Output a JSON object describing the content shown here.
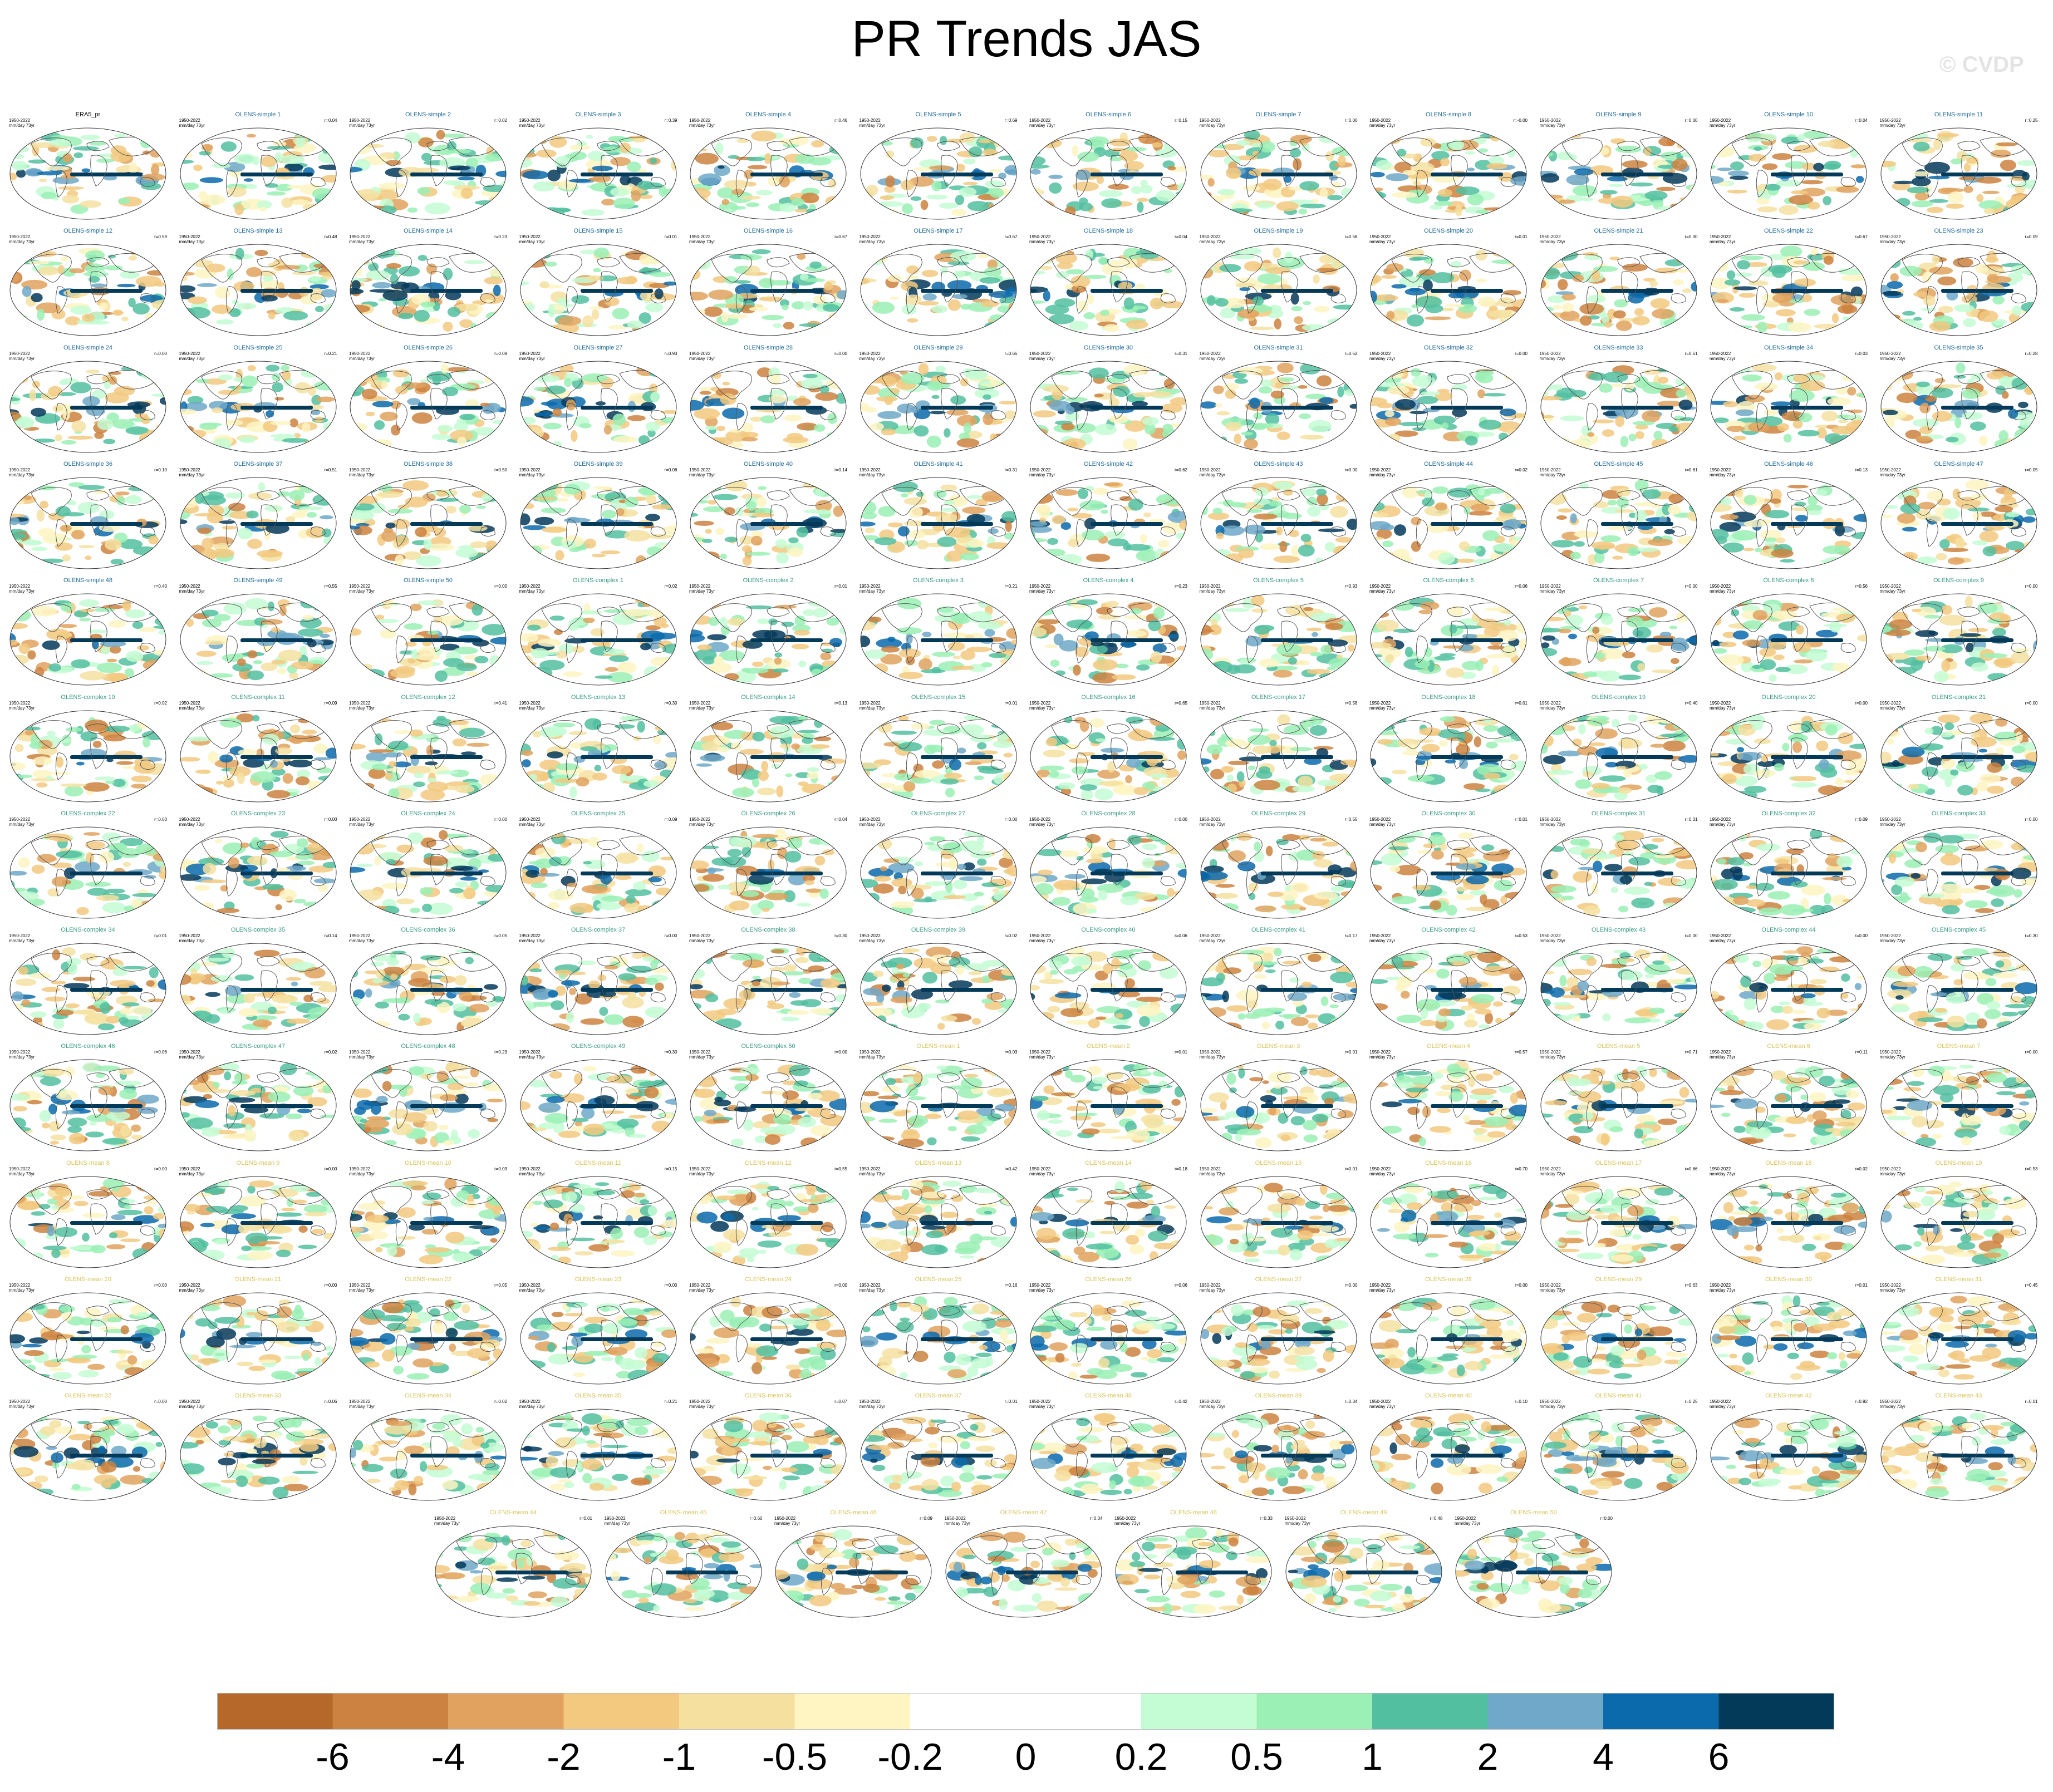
{
  "title": "PR Trends JAS",
  "watermark": "© CVDP",
  "panel_years": "1950-2022",
  "panel_units": "mm/day 73yr",
  "colors": {
    "simple_title": "#1f6b9a",
    "complex_title": "#3a9a86",
    "mean_title": "#d8c45a",
    "obs_title": "#000000",
    "land_outline": "#555555",
    "ocean_bg": "#ffffff"
  },
  "colorbar": {
    "labels": [
      "-6",
      "-4",
      "-2",
      "-1",
      "-0.5",
      "-0.2",
      "0",
      "0.2",
      "0.5",
      "1",
      "2",
      "4",
      "6"
    ],
    "colors": [
      "#b5682a",
      "#cc8240",
      "#e0a25e",
      "#f2c97f",
      "#f5e0a0",
      "#fef5c2",
      "#ffffff",
      "#ffffff",
      "#c4fcd4",
      "#9af0b5",
      "#52c0a0",
      "#6fa8c8",
      "#0b6aab",
      "#033a5a"
    ]
  },
  "panels": [
    {
      "title": "ERA5_pr",
      "group": "obs",
      "r": ""
    },
    {
      "title": "OLENS-simple 1",
      "group": "simple",
      "r": "r=0.04"
    },
    {
      "title": "OLENS-simple 2",
      "group": "simple",
      "r": "r=0.02"
    },
    {
      "title": "OLENS-simple 3",
      "group": "simple",
      "r": "r=0.39"
    },
    {
      "title": "OLENS-simple 4",
      "group": "simple",
      "r": "r=0.46"
    },
    {
      "title": "OLENS-simple 5",
      "group": "simple",
      "r": "r=0.69"
    },
    {
      "title": "OLENS-simple 6",
      "group": "simple",
      "r": "r=0.15"
    },
    {
      "title": "OLENS-simple 7",
      "group": "simple",
      "r": "r=0.00"
    },
    {
      "title": "OLENS-simple 8",
      "group": "simple",
      "r": "r=-0.00"
    },
    {
      "title": "OLENS-simple 9",
      "group": "simple",
      "r": "r=0.00"
    },
    {
      "title": "OLENS-simple 10",
      "group": "simple",
      "r": "r=0.04"
    },
    {
      "title": "OLENS-simple 11",
      "group": "simple",
      "r": "r=0.25"
    },
    {
      "title": "OLENS-simple 12",
      "group": "simple",
      "r": "r=0.59"
    },
    {
      "title": "OLENS-simple 13",
      "group": "simple",
      "r": "r=0.48"
    },
    {
      "title": "OLENS-simple 14",
      "group": "simple",
      "r": "r=0.23"
    },
    {
      "title": "OLENS-simple 15",
      "group": "simple",
      "r": "r=0.01"
    },
    {
      "title": "OLENS-simple 16",
      "group": "simple",
      "r": "r=0.67"
    },
    {
      "title": "OLENS-simple 17",
      "group": "simple",
      "r": "r=0.67"
    },
    {
      "title": "OLENS-simple 18",
      "group": "simple",
      "r": "r=0.04"
    },
    {
      "title": "OLENS-simple 19",
      "group": "simple",
      "r": "r=0.58"
    },
    {
      "title": "OLENS-simple 20",
      "group": "simple",
      "r": "r=0.01"
    },
    {
      "title": "OLENS-simple 21",
      "group": "simple",
      "r": "r=0.00"
    },
    {
      "title": "OLENS-simple 22",
      "group": "simple",
      "r": "r=0.67"
    },
    {
      "title": "OLENS-simple 23",
      "group": "simple",
      "r": "r=0.09"
    },
    {
      "title": "OLENS-simple 24",
      "group": "simple",
      "r": "r=0.00"
    },
    {
      "title": "OLENS-simple 25",
      "group": "simple",
      "r": "r=0.21"
    },
    {
      "title": "OLENS-simple 26",
      "group": "simple",
      "r": "r=0.08"
    },
    {
      "title": "OLENS-simple 27",
      "group": "simple",
      "r": "r=0.93"
    },
    {
      "title": "OLENS-simple 28",
      "group": "simple",
      "r": "r=0.00"
    },
    {
      "title": "OLENS-simple 29",
      "group": "simple",
      "r": "r=0.65"
    },
    {
      "title": "OLENS-simple 30",
      "group": "simple",
      "r": "r=0.31"
    },
    {
      "title": "OLENS-simple 31",
      "group": "simple",
      "r": "r=0.52"
    },
    {
      "title": "OLENS-simple 32",
      "group": "simple",
      "r": "r=0.00"
    },
    {
      "title": "OLENS-simple 33",
      "group": "simple",
      "r": "r=0.51"
    },
    {
      "title": "OLENS-simple 34",
      "group": "simple",
      "r": "r=0.03"
    },
    {
      "title": "OLENS-simple 35",
      "group": "simple",
      "r": "r=0.28"
    },
    {
      "title": "OLENS-simple 36",
      "group": "simple",
      "r": "r=0.10"
    },
    {
      "title": "OLENS-simple 37",
      "group": "simple",
      "r": "r=0.51"
    },
    {
      "title": "OLENS-simple 38",
      "group": "simple",
      "r": "r=0.50"
    },
    {
      "title": "OLENS-simple 39",
      "group": "simple",
      "r": "r=0.08"
    },
    {
      "title": "OLENS-simple 40",
      "group": "simple",
      "r": "r=0.14"
    },
    {
      "title": "OLENS-simple 41",
      "group": "simple",
      "r": "r=0.31"
    },
    {
      "title": "OLENS-simple 42",
      "group": "simple",
      "r": "r=0.62"
    },
    {
      "title": "OLENS-simple 43",
      "group": "simple",
      "r": "r=0.00"
    },
    {
      "title": "OLENS-simple 44",
      "group": "simple",
      "r": "r=0.02"
    },
    {
      "title": "OLENS-simple 45",
      "group": "simple",
      "r": "r=0.61"
    },
    {
      "title": "OLENS-simple 46",
      "group": "simple",
      "r": "r=0.13"
    },
    {
      "title": "OLENS-simple 47",
      "group": "simple",
      "r": "r=0.05"
    },
    {
      "title": "OLENS-simple 48",
      "group": "simple",
      "r": "r=0.40"
    },
    {
      "title": "OLENS-simple 49",
      "group": "simple",
      "r": "r=0.55"
    },
    {
      "title": "OLENS-simple 50",
      "group": "simple",
      "r": "r=0.00"
    },
    {
      "title": "OLENS-complex 1",
      "group": "complex",
      "r": "r=0.02"
    },
    {
      "title": "OLENS-complex 2",
      "group": "complex",
      "r": "r=0.01"
    },
    {
      "title": "OLENS-complex 3",
      "group": "complex",
      "r": "r=0.21"
    },
    {
      "title": "OLENS-complex 4",
      "group": "complex",
      "r": "r=0.23"
    },
    {
      "title": "OLENS-complex 5",
      "group": "complex",
      "r": "r=0.93"
    },
    {
      "title": "OLENS-complex 6",
      "group": "complex",
      "r": "r=0.06"
    },
    {
      "title": "OLENS-complex 7",
      "group": "complex",
      "r": "r=0.00"
    },
    {
      "title": "OLENS-complex 8",
      "group": "complex",
      "r": "r=0.56"
    },
    {
      "title": "OLENS-complex 9",
      "group": "complex",
      "r": "r=0.00"
    },
    {
      "title": "OLENS-complex 10",
      "group": "complex",
      "r": "r=0.02"
    },
    {
      "title": "OLENS-complex 11",
      "group": "complex",
      "r": "r=0.09"
    },
    {
      "title": "OLENS-complex 12",
      "group": "complex",
      "r": "r=0.41"
    },
    {
      "title": "OLENS-complex 13",
      "group": "complex",
      "r": "r=0.30"
    },
    {
      "title": "OLENS-complex 14",
      "group": "complex",
      "r": "r=0.13"
    },
    {
      "title": "OLENS-complex 15",
      "group": "complex",
      "r": "r=0.01"
    },
    {
      "title": "OLENS-complex 16",
      "group": "complex",
      "r": "r=0.65"
    },
    {
      "title": "OLENS-complex 17",
      "group": "complex",
      "r": "r=0.58"
    },
    {
      "title": "OLENS-complex 18",
      "group": "complex",
      "r": "r=0.01"
    },
    {
      "title": "OLENS-complex 19",
      "group": "complex",
      "r": "r=0.40"
    },
    {
      "title": "OLENS-complex 20",
      "group": "complex",
      "r": "r=0.00"
    },
    {
      "title": "OLENS-complex 21",
      "group": "complex",
      "r": "r=0.00"
    },
    {
      "title": "OLENS-complex 22",
      "group": "complex",
      "r": "r=0.03"
    },
    {
      "title": "OLENS-complex 23",
      "group": "complex",
      "r": "r=0.00"
    },
    {
      "title": "OLENS-complex 24",
      "group": "complex",
      "r": "r=0.00"
    },
    {
      "title": "OLENS-complex 25",
      "group": "complex",
      "r": "r=0.09"
    },
    {
      "title": "OLENS-complex 26",
      "group": "complex",
      "r": "r=0.04"
    },
    {
      "title": "OLENS-complex 27",
      "group": "complex",
      "r": "r=0.00"
    },
    {
      "title": "OLENS-complex 28",
      "group": "complex",
      "r": "r=0.00"
    },
    {
      "title": "OLENS-complex 29",
      "group": "complex",
      "r": "r=0.55"
    },
    {
      "title": "OLENS-complex 30",
      "group": "complex",
      "r": "r=0.01"
    },
    {
      "title": "OLENS-complex 31",
      "group": "complex",
      "r": "r=0.31"
    },
    {
      "title": "OLENS-complex 32",
      "group": "complex",
      "r": "r=0.09"
    },
    {
      "title": "OLENS-complex 33",
      "group": "complex",
      "r": "r=0.00"
    },
    {
      "title": "OLENS-complex 34",
      "group": "complex",
      "r": "r=0.01"
    },
    {
      "title": "OLENS-complex 35",
      "group": "complex",
      "r": "r=0.14"
    },
    {
      "title": "OLENS-complex 36",
      "group": "complex",
      "r": "r=0.05"
    },
    {
      "title": "OLENS-complex 37",
      "group": "complex",
      "r": "r=0.00"
    },
    {
      "title": "OLENS-complex 38",
      "group": "complex",
      "r": "r=0.30"
    },
    {
      "title": "OLENS-complex 39",
      "group": "complex",
      "r": "r=0.02"
    },
    {
      "title": "OLENS-complex 40",
      "group": "complex",
      "r": "r=0.06"
    },
    {
      "title": "OLENS-complex 41",
      "group": "complex",
      "r": "r=0.17"
    },
    {
      "title": "OLENS-complex 42",
      "group": "complex",
      "r": "r=0.53"
    },
    {
      "title": "OLENS-complex 43",
      "group": "complex",
      "r": "r=0.00"
    },
    {
      "title": "OLENS-complex 44",
      "group": "complex",
      "r": "r=0.00"
    },
    {
      "title": "OLENS-complex 45",
      "group": "complex",
      "r": "r=0.30"
    },
    {
      "title": "OLENS-complex 46",
      "group": "complex",
      "r": "r=0.06"
    },
    {
      "title": "OLENS-complex 47",
      "group": "complex",
      "r": "r=0.02"
    },
    {
      "title": "OLENS-complex 48",
      "group": "complex",
      "r": "r=0.23"
    },
    {
      "title": "OLENS-complex 49",
      "group": "complex",
      "r": "r=0.30"
    },
    {
      "title": "OLENS-complex 50",
      "group": "complex",
      "r": "r=0.00"
    },
    {
      "title": "OLENS-mean 1",
      "group": "mean",
      "r": "r=0.03"
    },
    {
      "title": "OLENS-mean 2",
      "group": "mean",
      "r": "r=0.01"
    },
    {
      "title": "OLENS-mean 3",
      "group": "mean",
      "r": "r=0.01"
    },
    {
      "title": "OLENS-mean 4",
      "group": "mean",
      "r": "r=0.57"
    },
    {
      "title": "OLENS-mean 5",
      "group": "mean",
      "r": "r=0.71"
    },
    {
      "title": "OLENS-mean 6",
      "group": "mean",
      "r": "r=0.11"
    },
    {
      "title": "OLENS-mean 7",
      "group": "mean",
      "r": "r=0.00"
    },
    {
      "title": "OLENS-mean 8",
      "group": "mean",
      "r": "r=0.00"
    },
    {
      "title": "OLENS-mean 9",
      "group": "mean",
      "r": "r=0.00"
    },
    {
      "title": "OLENS-mean 10",
      "group": "mean",
      "r": "r=0.03"
    },
    {
      "title": "OLENS-mean 11",
      "group": "mean",
      "r": "r=0.15"
    },
    {
      "title": "OLENS-mean 12",
      "group": "mean",
      "r": "r=0.55"
    },
    {
      "title": "OLENS-mean 13",
      "group": "mean",
      "r": "r=0.42"
    },
    {
      "title": "OLENS-mean 14",
      "group": "mean",
      "r": "r=0.18"
    },
    {
      "title": "OLENS-mean 15",
      "group": "mean",
      "r": "r=0.01"
    },
    {
      "title": "OLENS-mean 16",
      "group": "mean",
      "r": "r=0.70"
    },
    {
      "title": "OLENS-mean 17",
      "group": "mean",
      "r": "r=0.66"
    },
    {
      "title": "OLENS-mean 18",
      "group": "mean",
      "r": "r=0.02"
    },
    {
      "title": "OLENS-mean 19",
      "group": "mean",
      "r": "r=0.53"
    },
    {
      "title": "OLENS-mean 20",
      "group": "mean",
      "r": "r=0.00"
    },
    {
      "title": "OLENS-mean 21",
      "group": "mean",
      "r": "r=0.00"
    },
    {
      "title": "OLENS-mean 22",
      "group": "mean",
      "r": "r=0.05"
    },
    {
      "title": "OLENS-mean 23",
      "group": "mean",
      "r": "r=0.00"
    },
    {
      "title": "OLENS-mean 24",
      "group": "mean",
      "r": "r=0.00"
    },
    {
      "title": "OLENS-mean 25",
      "group": "mean",
      "r": "r=0.16"
    },
    {
      "title": "OLENS-mean 26",
      "group": "mean",
      "r": "r=0.06"
    },
    {
      "title": "OLENS-mean 27",
      "group": "mean",
      "r": "r=0.00"
    },
    {
      "title": "OLENS-mean 28",
      "group": "mean",
      "r": "r=0.00"
    },
    {
      "title": "OLENS-mean 29",
      "group": "mean",
      "r": "r=0.63"
    },
    {
      "title": "OLENS-mean 30",
      "group": "mean",
      "r": "r=0.01"
    },
    {
      "title": "OLENS-mean 31",
      "group": "mean",
      "r": "r=0.45"
    },
    {
      "title": "OLENS-mean 32",
      "group": "mean",
      "r": "r=0.00"
    },
    {
      "title": "OLENS-mean 33",
      "group": "mean",
      "r": "r=0.06"
    },
    {
      "title": "OLENS-mean 34",
      "group": "mean",
      "r": "r=0.02"
    },
    {
      "title": "OLENS-mean 35",
      "group": "mean",
      "r": "r=0.21"
    },
    {
      "title": "OLENS-mean 36",
      "group": "mean",
      "r": "r=0.07"
    },
    {
      "title": "OLENS-mean 37",
      "group": "mean",
      "r": "r=0.01"
    },
    {
      "title": "OLENS-mean 38",
      "group": "mean",
      "r": "r=0.42"
    },
    {
      "title": "OLENS-mean 39",
      "group": "mean",
      "r": "r=0.34"
    },
    {
      "title": "OLENS-mean 40",
      "group": "mean",
      "r": "r=0.10"
    },
    {
      "title": "OLENS-mean 41",
      "group": "mean",
      "r": "r=0.25"
    },
    {
      "title": "OLENS-mean 42",
      "group": "mean",
      "r": "r=0.92"
    },
    {
      "title": "OLENS-mean 43",
      "group": "mean",
      "r": "r=0.01"
    },
    {
      "title": "OLENS-mean 44",
      "group": "mean",
      "r": "r=0.01"
    },
    {
      "title": "OLENS-mean 45",
      "group": "mean",
      "r": "r=0.60"
    },
    {
      "title": "OLENS-mean 46",
      "group": "mean",
      "r": "r=0.09"
    },
    {
      "title": "OLENS-mean 47",
      "group": "mean",
      "r": "r=0.04"
    },
    {
      "title": "OLENS-mean 48",
      "group": "mean",
      "r": "r=0.33"
    },
    {
      "title": "OLENS-mean 49",
      "group": "mean",
      "r": "r=0.48"
    },
    {
      "title": "OLENS-mean 50",
      "group": "mean",
      "r": "r=0.00"
    }
  ]
}
